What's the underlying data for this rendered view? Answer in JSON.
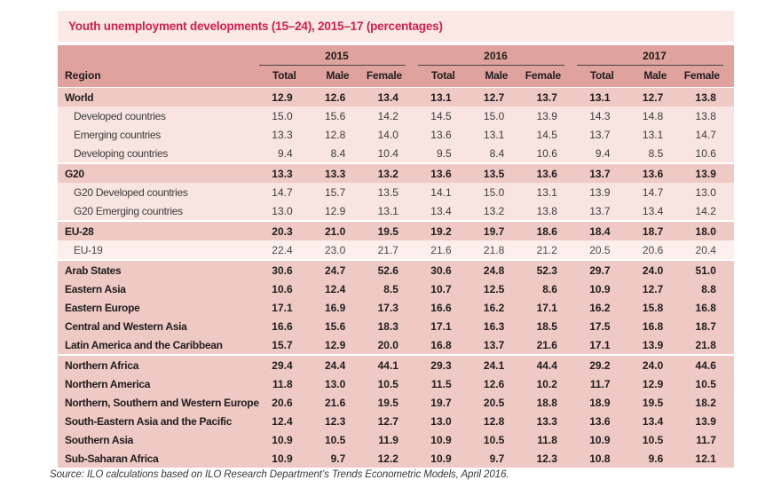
{
  "title": "Youth unemployment developments (15–24), 2015–17 (percentages)",
  "source": "Source: ILO calculations based on ILO Research Department’s Trends Econometric Models, April 2016.",
  "table": {
    "region_header": "Region",
    "year_groups": [
      "2015",
      "2016",
      "2017"
    ],
    "sub_headers": [
      "Total",
      "Male",
      "Female"
    ],
    "groups": [
      {
        "rows": [
          {
            "region": "World",
            "style": "bold",
            "values": [
              "12.9",
              "12.6",
              "13.4",
              "13.1",
              "12.7",
              "13.7",
              "13.1",
              "12.7",
              "13.8"
            ]
          },
          {
            "region": "Developed countries",
            "style": "sub",
            "values": [
              "15.0",
              "15.6",
              "14.2",
              "14.5",
              "15.0",
              "13.9",
              "14.3",
              "14.8",
              "13.8"
            ]
          },
          {
            "region": "Emerging countries",
            "style": "sub",
            "values": [
              "13.3",
              "12.8",
              "14.0",
              "13.6",
              "13.1",
              "14.5",
              "13.7",
              "13.1",
              "14.7"
            ]
          },
          {
            "region": "Developing countries",
            "style": "sub",
            "values": [
              "9.4",
              "8.4",
              "10.4",
              "9.5",
              "8.4",
              "10.6",
              "9.4",
              "8.5",
              "10.6"
            ]
          }
        ]
      },
      {
        "rows": [
          {
            "region": "G20",
            "style": "bold",
            "values": [
              "13.3",
              "13.3",
              "13.2",
              "13.6",
              "13.5",
              "13.6",
              "13.7",
              "13.6",
              "13.9"
            ]
          },
          {
            "region": "G20 Developed countries",
            "style": "sub",
            "values": [
              "14.7",
              "15.7",
              "13.5",
              "14.1",
              "15.0",
              "13.1",
              "13.9",
              "14.7",
              "13.0"
            ]
          },
          {
            "region": "G20 Emerging countries",
            "style": "sub",
            "values": [
              "13.0",
              "12.9",
              "13.1",
              "13.4",
              "13.2",
              "13.8",
              "13.7",
              "13.4",
              "14.2"
            ]
          }
        ]
      },
      {
        "rows": [
          {
            "region": "EU-28",
            "style": "bold",
            "values": [
              "20.3",
              "21.0",
              "19.5",
              "19.2",
              "19.7",
              "18.6",
              "18.4",
              "18.7",
              "18.0"
            ]
          },
          {
            "region": "EU-19",
            "style": "sub-light",
            "values": [
              "22.4",
              "23.0",
              "21.7",
              "21.6",
              "21.8",
              "21.2",
              "20.5",
              "20.6",
              "20.4"
            ]
          }
        ]
      },
      {
        "rows": [
          {
            "region": "Arab States",
            "style": "bold",
            "values": [
              "30.6",
              "24.7",
              "52.6",
              "30.6",
              "24.8",
              "52.3",
              "29.7",
              "24.0",
              "51.0"
            ]
          },
          {
            "region": "Eastern Asia",
            "style": "bold",
            "values": [
              "10.6",
              "12.4",
              "8.5",
              "10.7",
              "12.5",
              "8.6",
              "10.9",
              "12.7",
              "8.8"
            ]
          },
          {
            "region": "Eastern Europe",
            "style": "bold",
            "values": [
              "17.1",
              "16.9",
              "17.3",
              "16.6",
              "16.2",
              "17.1",
              "16.2",
              "15.8",
              "16.8"
            ]
          },
          {
            "region": "Central and Western Asia",
            "style": "bold",
            "values": [
              "16.6",
              "15.6",
              "18.3",
              "17.1",
              "16.3",
              "18.5",
              "17.5",
              "16.8",
              "18.7"
            ]
          },
          {
            "region": "Latin America and the Caribbean",
            "style": "bold",
            "values": [
              "15.7",
              "12.9",
              "20.0",
              "16.8",
              "13.7",
              "21.6",
              "17.1",
              "13.9",
              "21.8"
            ]
          }
        ]
      },
      {
        "rows": [
          {
            "region": "Northern Africa",
            "style": "bold",
            "values": [
              "29.4",
              "24.4",
              "44.1",
              "29.3",
              "24.1",
              "44.4",
              "29.2",
              "24.0",
              "44.6"
            ]
          },
          {
            "region": "Northern America",
            "style": "bold",
            "values": [
              "11.8",
              "13.0",
              "10.5",
              "11.5",
              "12.6",
              "10.2",
              "11.7",
              "12.9",
              "10.5"
            ]
          },
          {
            "region": "Northern, Southern and Western Europe",
            "style": "bold",
            "values": [
              "20.6",
              "21.6",
              "19.5",
              "19.7",
              "20.5",
              "18.8",
              "18.9",
              "19.5",
              "18.2"
            ]
          },
          {
            "region": "South-Eastern Asia and the Pacific",
            "style": "bold",
            "values": [
              "12.4",
              "12.3",
              "12.7",
              "13.0",
              "12.8",
              "13.3",
              "13.6",
              "13.4",
              "13.9"
            ]
          },
          {
            "region": "Southern Asia",
            "style": "bold",
            "values": [
              "10.9",
              "10.5",
              "11.9",
              "10.9",
              "10.5",
              "11.8",
              "10.9",
              "10.5",
              "11.7"
            ]
          },
          {
            "region": "Sub-Saharan Africa",
            "style": "bold",
            "values": [
              "10.9",
              "9.7",
              "12.2",
              "10.9",
              "9.7",
              "12.3",
              "10.8",
              "9.6",
              "12.1"
            ]
          }
        ]
      }
    ]
  },
  "colors": {
    "title_text": "#d0204a",
    "title_band_bg": "#fbe9e5",
    "header_bg": "#e0a29d",
    "bold_row_bg": "#efc9c4",
    "sub_row_bg": "#f8e4e0",
    "sub_light_row_bg": "#fcefec",
    "year_underline": "#454545"
  }
}
